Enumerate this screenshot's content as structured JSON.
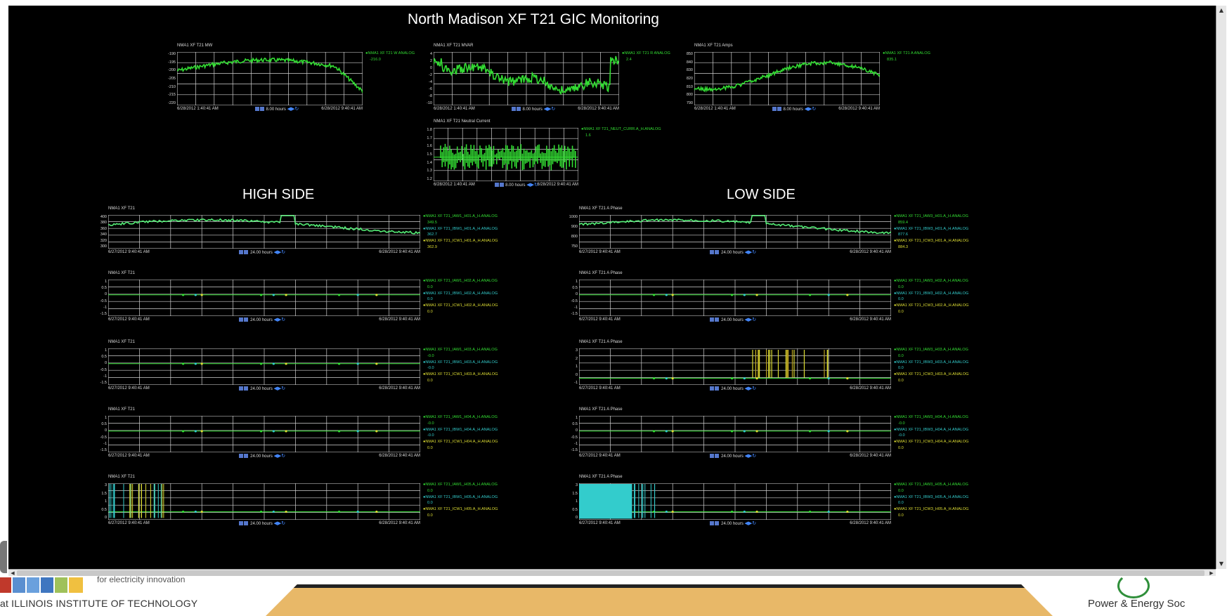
{
  "page": {
    "title": "North Madison XF T21 GIC Monitoring",
    "high_side": "HIGH SIDE",
    "low_side": "LOW SIDE"
  },
  "colors": {
    "green": "#33dd33",
    "cyan": "#33cccc",
    "yellow": "#dddd33",
    "light_green": "#55ee77",
    "grid": "#d8d8d8"
  },
  "panels": [
    {
      "id": "mw",
      "title": "NMA1 XF T21 MW",
      "yticks": [
        "-190",
        "-195",
        "-200",
        "-205",
        "-210",
        "-215",
        "-220"
      ],
      "t_start": "6/28/2012 1:40:41 AM",
      "t_end": "6/28/2012 9:40:41 AM",
      "duration": "8.00 hours",
      "legend": [
        {
          "name": "NMA1 XF T21 W ANALOG",
          "value": "-216.0",
          "color": "green"
        }
      ]
    },
    {
      "id": "mvar",
      "title": "NMA1 XF T21 MVAR",
      "yticks": [
        "4",
        "2",
        "0",
        "-2",
        "-4",
        "-6",
        "-8",
        "-10"
      ],
      "t_start": "6/28/2012 1:40:41 AM",
      "t_end": "6/28/2012 9:40:41 AM",
      "duration": "8.00 hours",
      "legend": [
        {
          "name": "NMA1 XF T21 R ANALOG",
          "value": "2.4",
          "color": "green"
        }
      ]
    },
    {
      "id": "amps",
      "title": "NMA1 XF T21 Amps",
      "yticks": [
        "850",
        "840",
        "830",
        "820",
        "810",
        "800",
        "790"
      ],
      "t_start": "6/28/2012 1:40:41 AM",
      "t_end": "6/28/2012 9:40:41 AM",
      "duration": "8.00 hours",
      "legend": [
        {
          "name": "NMA1 XF T21 A ANALOG",
          "value": "835.1",
          "color": "green"
        }
      ]
    },
    {
      "id": "neutral",
      "title": "NMA1 XF T21 Neutral Current",
      "yticks": [
        "1.8",
        "1.7",
        "1.6",
        "1.5",
        "1.4",
        "1.3",
        "1.2"
      ],
      "t_start": "6/28/2012 1:40:41 AM",
      "t_end": "6/28/2012 9:40:41 AM",
      "duration": "8.00 hours",
      "legend": [
        {
          "name": "NMA1 XF T21_NEUT_CURR.A_H.ANALOG",
          "value": "1.6",
          "color": "green"
        }
      ]
    },
    {
      "id": "hs1",
      "title": "NMA1 XF T21",
      "yticks": [
        "400",
        "380",
        "360",
        "340",
        "320",
        "300"
      ],
      "t_start": "6/27/2012 9:40:41 AM",
      "t_end": "6/28/2012 9:40:41 AM",
      "duration": "24.00 hours",
      "legend": [
        {
          "name": "NMA1 XF T21_IAW1_H01.A_H.ANALOG",
          "value": "349.5",
          "color": "green"
        },
        {
          "name": "NMA1 XF T21_IBW1_H01.A_H.ANALOG",
          "value": "362.7",
          "color": "cyan"
        },
        {
          "name": "NMA1 XF T21_ICW1_H01.A_H.ANALOG",
          "value": "362.9",
          "color": "yellow"
        }
      ]
    },
    {
      "id": "hs2",
      "title": "NMA1 XF T21",
      "yticks": [
        "1",
        "0.5",
        "0",
        "-0.5",
        "-1",
        "-1.5"
      ],
      "t_start": "6/27/2012 9:40:41 AM",
      "t_end": "6/28/2012 9:40:41 AM",
      "duration": "24.00 hours",
      "legend": [
        {
          "name": "NMA1 XF T21_IAW1_H02.A_H.ANALOG",
          "value": "0.0",
          "color": "green"
        },
        {
          "name": "NMA1 XF T21_IBW1_H02.A_H.ANALOG",
          "value": "0.0",
          "color": "cyan"
        },
        {
          "name": "NMA1 XF T21_ICW1_H02.A_H.ANALOG",
          "value": "0.0",
          "color": "yellow"
        }
      ]
    },
    {
      "id": "hs3",
      "title": "NMA1 XF T21",
      "yticks": [
        "1",
        "0.5",
        "0",
        "-0.5",
        "-1",
        "-1.5"
      ],
      "t_start": "6/27/2012 9:40:41 AM",
      "t_end": "6/28/2012 9:40:41 AM",
      "duration": "24.00 hours",
      "legend": [
        {
          "name": "NMA1 XF T21_IAW1_H03.A_H.ANALOG",
          "value": "-0.0",
          "color": "green"
        },
        {
          "name": "NMA1 XF T21_IBW1_H03.A_H.ANALOG",
          "value": "-0.0",
          "color": "cyan"
        },
        {
          "name": "NMA1 XF T21_ICW1_H03.A_H.ANALOG",
          "value": "0.0",
          "color": "yellow"
        }
      ]
    },
    {
      "id": "hs4",
      "title": "NMA1 XF T21",
      "yticks": [
        "1",
        "0.5",
        "0",
        "-0.5",
        "-1",
        "-1.5"
      ],
      "t_start": "6/27/2012 9:40:41 AM",
      "t_end": "6/28/2012 9:40:41 AM",
      "duration": "24.00 hours",
      "legend": [
        {
          "name": "NMA1 XF T21_IAW1_H04.A_H.ANALOG",
          "value": "-0.0",
          "color": "green"
        },
        {
          "name": "NMA1 XF T21_IBW1_H04.A_H.ANALOG",
          "value": "-0.0",
          "color": "cyan"
        },
        {
          "name": "NMA1 XF T21_ICW1_H04.A_H.ANALOG",
          "value": "0.0",
          "color": "yellow"
        }
      ]
    },
    {
      "id": "hs5",
      "title": "NMA1 XF T21",
      "yticks": [
        "3",
        "1.5",
        "1",
        "0.5",
        "0"
      ],
      "t_start": "6/27/2012 9:40:41 AM",
      "t_end": "6/28/2012 9:40:41 AM",
      "duration": "24.00 hours",
      "legend": [
        {
          "name": "NMA1 XF T21_IAW1_H05.A_H.ANALOG",
          "value": "0.0",
          "color": "green"
        },
        {
          "name": "NMA1 XF T21_IBW1_H05.A_H.ANALOG",
          "value": "0.0",
          "color": "cyan"
        },
        {
          "name": "NMA1 XF T21_ICW1_H05.A_H.ANALOG",
          "value": "0.0",
          "color": "yellow"
        }
      ]
    },
    {
      "id": "ls1",
      "title": "NMA1 XF T21 A Phase",
      "yticks": [
        "1000",
        "900",
        "800",
        "750"
      ],
      "t_start": "6/27/2012 9:40:41 AM",
      "t_end": "6/28/2012 9:40:41 AM",
      "duration": "24.00 hours",
      "legend": [
        {
          "name": "NMA1 XF T21_IAW3_H01.A_H.ANALOG",
          "value": "859.4",
          "color": "green"
        },
        {
          "name": "NMA1 XF T21_IBW3_H01.A_H.ANALOG",
          "value": "877.6",
          "color": "cyan"
        },
        {
          "name": "NMA1 XF T21_ICW3_H01.A_H.ANALOG",
          "value": "884.3",
          "color": "yellow"
        }
      ]
    },
    {
      "id": "ls2",
      "title": "NMA1 XF T21 A Phase",
      "yticks": [
        "1",
        "0.5",
        "0",
        "-0.5",
        "-1",
        "-1.5"
      ],
      "t_start": "6/27/2012 9:40:41 AM",
      "t_end": "6/28/2012 9:40:41 AM",
      "duration": "24.00 hours",
      "legend": [
        {
          "name": "NMA1 XF T21_IAW3_H02.A_H.ANALOG",
          "value": "0.0",
          "color": "green"
        },
        {
          "name": "NMA1 XF T21_IBW3_H02.A_H.ANALOG",
          "value": "0.0",
          "color": "cyan"
        },
        {
          "name": "NMA1 XF T21_ICW3_H02.A_H.ANALOG",
          "value": "0.0",
          "color": "yellow"
        }
      ]
    },
    {
      "id": "ls3",
      "title": "NMA1 XF T21 A Phase",
      "yticks": [
        "3",
        "2",
        "1",
        "0",
        "-1"
      ],
      "t_start": "6/27/2012 9:40:41 AM",
      "t_end": "6/28/2012 9:40:41 AM",
      "duration": "24.00 hours",
      "legend": [
        {
          "name": "NMA1 XF T21_IAW3_H03.A_H.ANALOG",
          "value": "0.0",
          "color": "green"
        },
        {
          "name": "NMA1 XF T21_IBW3_H03.A_H.ANALOG",
          "value": "0.0",
          "color": "cyan"
        },
        {
          "name": "NMA1 XF T21_ICW3_H03.A_H.ANALOG",
          "value": "0.0",
          "color": "yellow"
        }
      ]
    },
    {
      "id": "ls4",
      "title": "NMA1 XF T21 A Phase",
      "yticks": [
        "1",
        "0.5",
        "0",
        "-0.5",
        "-1",
        "-1.5"
      ],
      "t_start": "6/27/2012 9:40:41 AM",
      "t_end": "6/28/2012 9:40:41 AM",
      "duration": "24.00 hours",
      "legend": [
        {
          "name": "NMA1 XF T21_IAW3_H04.A_H.ANALOG",
          "value": "-0.0",
          "color": "green"
        },
        {
          "name": "NMA1 XF T21_IBW3_H04.A_H.ANALOG",
          "value": "-0.0",
          "color": "cyan"
        },
        {
          "name": "NMA1 XF T21_ICW3_H04.A_H.ANALOG",
          "value": "0.0",
          "color": "yellow"
        }
      ]
    },
    {
      "id": "ls5",
      "title": "NMA1 XF T21 A Phase",
      "yticks": [
        "3",
        "1.5",
        "1",
        "0.5",
        "0"
      ],
      "t_start": "6/27/2012 9:40:41 AM",
      "t_end": "6/28/2012 9:40:41 AM",
      "duration": "24.00 hours",
      "legend": [
        {
          "name": "NMA1 XF T21_IAW3_H05.A_H.ANALOG",
          "value": "0.0",
          "color": "green"
        },
        {
          "name": "NMA1 XF T21_IBW3_H05.A_H.ANALOG",
          "value": "0.0",
          "color": "cyan"
        },
        {
          "name": "NMA1 XF T21_ICW3_H05.A_H.ANALOG",
          "value": "0.0",
          "color": "yellow"
        }
      ]
    }
  ],
  "footer": {
    "iit": "at ILLINOIS INSTITUTE OF TECHNOLOGY",
    "iit_tag": "for electricity innovation",
    "pes": "Power & Energy Soc"
  }
}
